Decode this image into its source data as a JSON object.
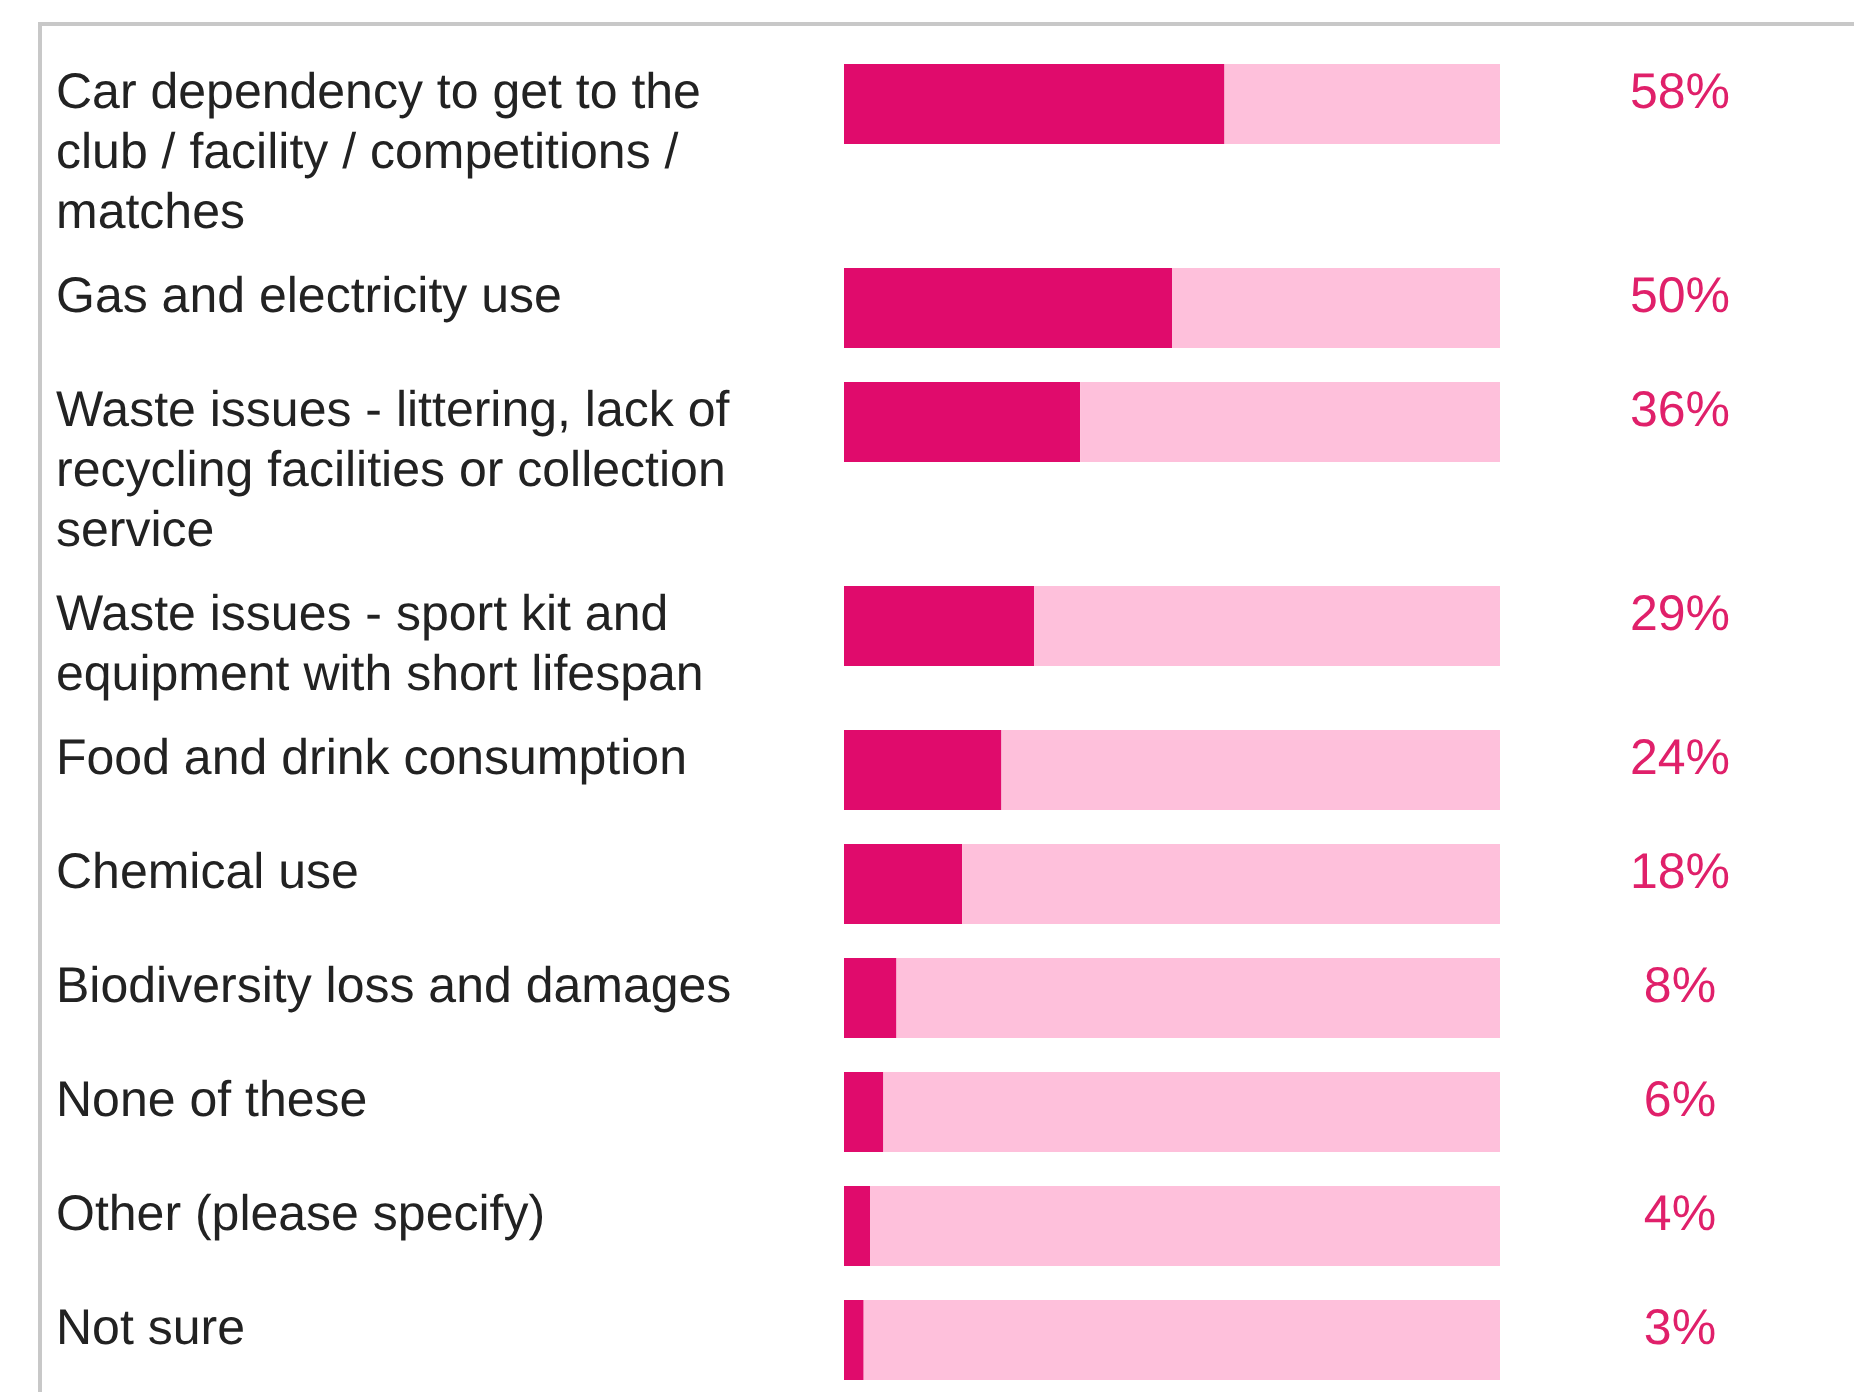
{
  "chart_data": {
    "type": "bar",
    "orientation": "horizontal",
    "stacked": true,
    "xlim": [
      0,
      100
    ],
    "tick_labels": false,
    "categories": [
      "Car dependency to get to the club / facility / competitions / matches",
      "Gas and electricity use",
      "Waste issues - littering, lack of recycling facilities or collection service",
      "Waste issues - sport kit and equipment with short lifespan",
      "Food and drink consumption",
      "Chemical use",
      "Biodiversity loss and damages",
      "None of these",
      "Other (please specify)",
      "Not sure"
    ],
    "series": [
      {
        "color": "#e00b6c",
        "values": [
          58,
          50,
          36,
          29,
          24,
          18,
          8,
          6,
          4,
          3
        ],
        "value_labels": [
          "58%",
          "50%",
          "36%",
          "29%",
          "24%",
          "18%",
          "8%",
          "6%",
          "4%",
          "3%"
        ]
      },
      {
        "color": "#fec0db",
        "values": [
          42,
          50,
          64,
          71,
          76,
          82,
          92,
          94,
          96,
          97
        ]
      }
    ]
  }
}
